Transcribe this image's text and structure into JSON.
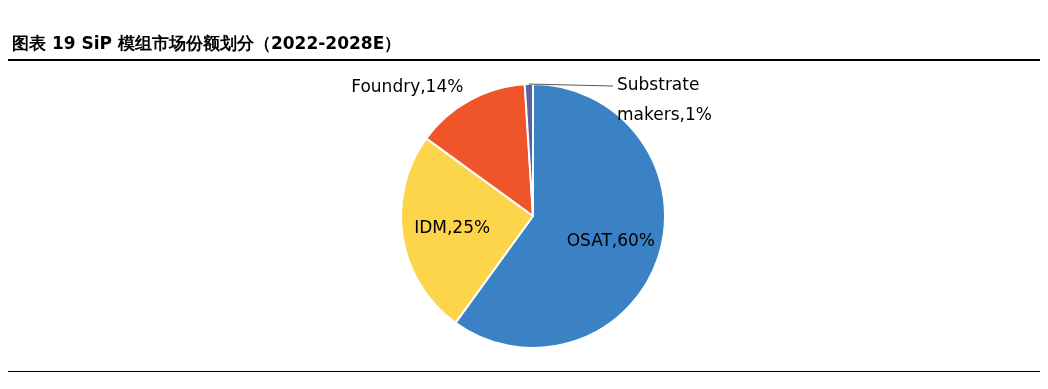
{
  "chart_data": {
    "type": "pie",
    "title": "图表 19 SiP 模组市场份额划分（2022-2028E）",
    "categories": [
      "OSAT",
      "IDM",
      "Foundry",
      "Substrate makers"
    ],
    "values": [
      60,
      25,
      14,
      1
    ],
    "colors": [
      "#3a82c4",
      "#fcd54a",
      "#f0542a",
      "#5a5fa8"
    ],
    "value_labels": [
      ",60%",
      ",25%",
      ",14%",
      ",1%"
    ],
    "legend": false
  }
}
